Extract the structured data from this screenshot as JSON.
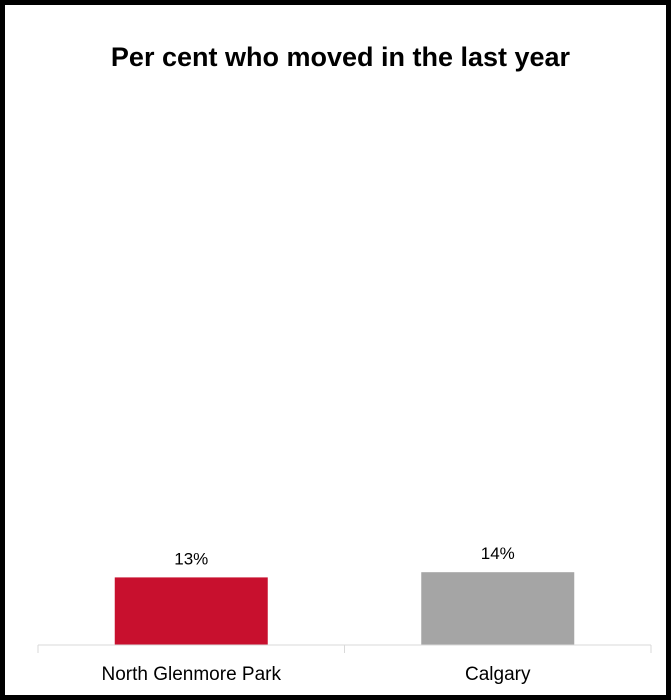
{
  "chart_data": {
    "type": "bar",
    "title": "Per cent who moved in the last year",
    "categories": [
      "North Glenmore Park",
      "Calgary"
    ],
    "values": [
      13,
      14
    ],
    "data_labels": [
      "13%",
      "14%"
    ],
    "colors": [
      "#c8102e",
      "#a5a5a5"
    ],
    "xlabel": "",
    "ylabel": "",
    "ylim": [
      0,
      100
    ],
    "grid": false,
    "legend": "none"
  }
}
